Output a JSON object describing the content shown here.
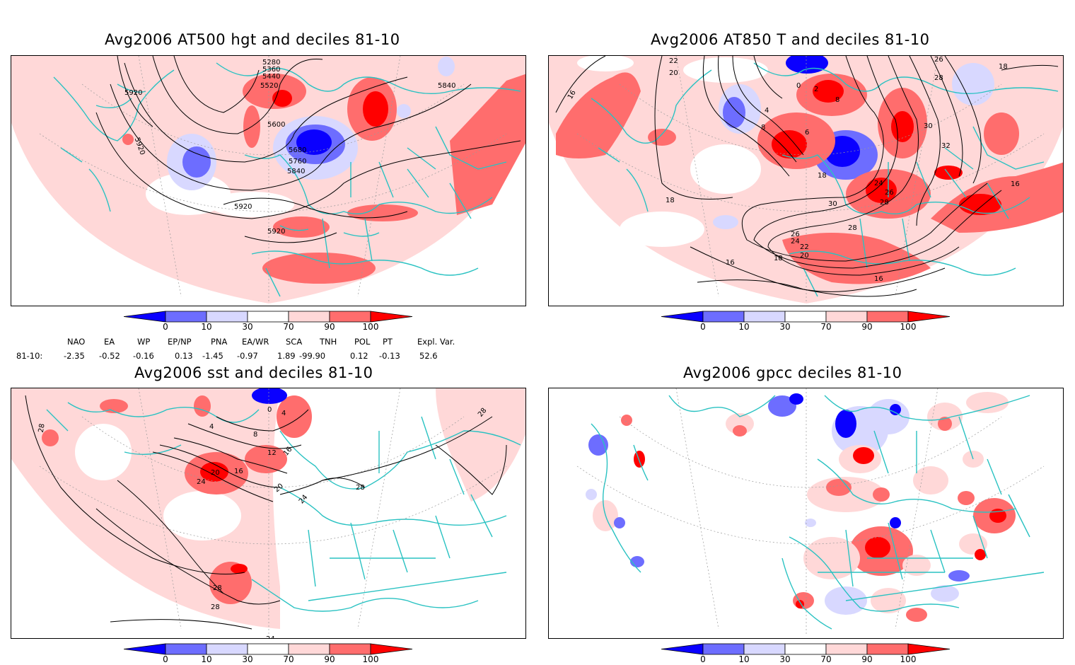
{
  "colors": {
    "dark_blue": "#0a00ff",
    "mid_blue": "#6d6dff",
    "light_blue": "#d8d8ff",
    "white": "#ffffff",
    "light_red": "#ffd8d8",
    "mid_red": "#ff6d6d",
    "dark_red": "#ff0000",
    "coast": "#2ac2c2",
    "contour": "#000000"
  },
  "colorbar_labels": [
    "0",
    "10",
    "30",
    "70",
    "90",
    "100"
  ],
  "panels": [
    {
      "title": "Avg2006 AT500 hgt and deciles 81-10",
      "contour_labels": [
        "5280",
        "5360",
        "5440",
        "5520",
        "5600",
        "5680",
        "5760",
        "5840",
        "5920",
        "5920",
        "5920",
        "5920",
        "5840"
      ]
    },
    {
      "title": "Avg2006 AT850 T and deciles 81-10",
      "contour_labels": [
        "22",
        "20",
        "16",
        "18",
        "4",
        "8",
        "6",
        "2",
        "0",
        "8",
        "18",
        "24",
        "26",
        "28",
        "30",
        "30",
        "32",
        "16",
        "28",
        "26",
        "24",
        "22",
        "20",
        "18",
        "16",
        "16",
        "18",
        "26",
        "28"
      ]
    },
    {
      "title": "Avg2006 sst and deciles 81-10",
      "contour_labels": [
        "28",
        "4",
        "0",
        "4",
        "8",
        "12",
        "16",
        "16",
        "20",
        "24",
        "20",
        "24",
        "28",
        "28",
        "28",
        "28",
        "24"
      ]
    },
    {
      "title": "Avg2006 gpcc deciles 81-10",
      "contour_labels": []
    }
  ],
  "indices": {
    "headers": [
      "NAO",
      "EA",
      "WP",
      "EP/NP",
      "PNA",
      "EA/WR",
      "SCA",
      "TNH",
      "POL",
      "PT",
      "Expl. Var."
    ],
    "row_label": "81-10:",
    "values": [
      "-2.35",
      "-0.52",
      "-0.16",
      "0.13",
      "-1.45",
      "-0.97",
      "1.89",
      "-99.90",
      "0.12",
      "-0.13",
      "52.6"
    ]
  }
}
